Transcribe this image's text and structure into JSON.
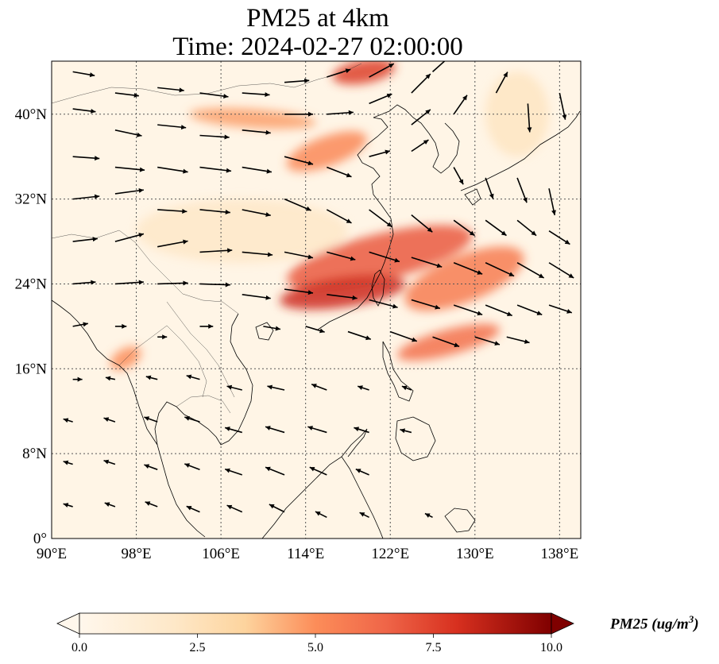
{
  "title": {
    "line1": "PM25 at 4km",
    "line2": "Time: 2024-02-27 02:00:00"
  },
  "map": {
    "extent": {
      "lon_min": 90,
      "lon_max": 140,
      "lat_min": 0,
      "lat_max": 45
    },
    "lon_ticks": [
      {
        "value": 90,
        "label": "90°E"
      },
      {
        "value": 98,
        "label": "98°E"
      },
      {
        "value": 106,
        "label": "106°E"
      },
      {
        "value": 114,
        "label": "114°E"
      },
      {
        "value": 122,
        "label": "122°E"
      },
      {
        "value": 130,
        "label": "130°E"
      },
      {
        "value": 138,
        "label": "138°E"
      }
    ],
    "lat_ticks": [
      {
        "value": 0,
        "label": "0°"
      },
      {
        "value": 8,
        "label": "8°N"
      },
      {
        "value": 16,
        "label": "16°N"
      },
      {
        "value": 24,
        "label": "24°N"
      },
      {
        "value": 32,
        "label": "32°N"
      },
      {
        "value": 40,
        "label": "40°N"
      }
    ],
    "gridlines": true,
    "background_color": "#fff5e6",
    "plumes": [
      {
        "lon": 121,
        "lat": 26.5,
        "rlon": 9,
        "rlat": 2.2,
        "rot": 14,
        "level": 6.8
      },
      {
        "lon": 117.5,
        "lat": 23.2,
        "rlon": 6,
        "rlat": 1.4,
        "rot": 8,
        "level": 8.2
      },
      {
        "lon": 129,
        "lat": 24.5,
        "rlon": 6,
        "rlat": 2.2,
        "rot": 22,
        "level": 5.6
      },
      {
        "lon": 127.5,
        "lat": 18.5,
        "rlon": 5,
        "rlat": 1.2,
        "rot": 15,
        "level": 6.0
      },
      {
        "lon": 116,
        "lat": 36.5,
        "rlon": 4,
        "rlat": 1.4,
        "rot": 20,
        "level": 5.2
      },
      {
        "lon": 119.5,
        "lat": 44,
        "rlon": 3,
        "rlat": 1.1,
        "rot": 10,
        "level": 7.6
      },
      {
        "lon": 109,
        "lat": 39.6,
        "rlon": 6,
        "rlat": 0.9,
        "rot": -4,
        "level": 4.6
      },
      {
        "lon": 97,
        "lat": 17,
        "rlon": 1.6,
        "rlat": 0.9,
        "rot": 30,
        "level": 5.0
      },
      {
        "lon": 134,
        "lat": 40,
        "rlon": 3,
        "rlat": 4,
        "rot": 0,
        "level": 2.2
      },
      {
        "lon": 108,
        "lat": 29,
        "rlon": 10,
        "rlat": 3,
        "rot": 0,
        "level": 2.0
      }
    ],
    "wind_vectors": [
      [
        92,
        44,
        2.3,
        -0.4
      ],
      [
        96,
        42,
        2.5,
        -0.3
      ],
      [
        100,
        42.5,
        2.8,
        -0.3
      ],
      [
        104,
        42,
        3.0,
        -0.4
      ],
      [
        108,
        42,
        2.9,
        -0.2
      ],
      [
        112,
        43,
        2.6,
        0.2
      ],
      [
        116,
        43.5,
        2.5,
        0.8
      ],
      [
        120,
        43.5,
        2.6,
        1.4
      ],
      [
        124,
        42,
        2.0,
        2.0
      ],
      [
        126,
        44,
        1.8,
        1.6
      ],
      [
        92,
        40.5,
        2.4,
        -0.3
      ],
      [
        96,
        38.5,
        2.8,
        -0.6
      ],
      [
        100,
        39,
        3.0,
        -0.3
      ],
      [
        104,
        38,
        3.1,
        -0.2
      ],
      [
        108,
        38.5,
        3.0,
        -0.3
      ],
      [
        112,
        40,
        3.0,
        0.0
      ],
      [
        116,
        40,
        2.8,
        0.2
      ],
      [
        120,
        41,
        2.4,
        1.0
      ],
      [
        124,
        39,
        2.0,
        1.6
      ],
      [
        128,
        40,
        1.4,
        2.0
      ],
      [
        132,
        42,
        1.2,
        2.2
      ],
      [
        135,
        41,
        0.2,
        -3.0
      ],
      [
        138,
        42,
        0.6,
        -2.8
      ],
      [
        92,
        36,
        2.8,
        -0.2
      ],
      [
        96,
        35,
        3.1,
        -0.3
      ],
      [
        100,
        35,
        3.2,
        -0.5
      ],
      [
        104,
        35,
        3.3,
        -0.4
      ],
      [
        108,
        35,
        3.1,
        -0.5
      ],
      [
        112,
        36,
        3.0,
        -0.8
      ],
      [
        116,
        35,
        2.6,
        -1.0
      ],
      [
        120,
        36,
        2.2,
        0.6
      ],
      [
        124,
        36.5,
        1.8,
        1.2
      ],
      [
        128,
        35,
        1.0,
        -1.8
      ],
      [
        131,
        34,
        0.8,
        -2.2
      ],
      [
        134,
        34,
        1.0,
        -2.6
      ],
      [
        137,
        33,
        0.6,
        -2.8
      ],
      [
        92,
        32,
        2.8,
        0.3
      ],
      [
        96,
        32.5,
        3.0,
        0.4
      ],
      [
        100,
        31,
        3.1,
        -0.2
      ],
      [
        104,
        31,
        3.2,
        -0.3
      ],
      [
        108,
        31,
        3.0,
        -0.6
      ],
      [
        112,
        32,
        2.8,
        -1.2
      ],
      [
        116,
        31,
        2.6,
        -1.4
      ],
      [
        120,
        31,
        2.4,
        -1.8
      ],
      [
        124,
        30.5,
        2.2,
        -1.8
      ],
      [
        128,
        30,
        2.2,
        -1.6
      ],
      [
        131,
        30,
        2.2,
        -1.6
      ],
      [
        134,
        30,
        2.0,
        -1.6
      ],
      [
        137,
        29,
        2.2,
        -1.4
      ],
      [
        92,
        28,
        2.6,
        0.3
      ],
      [
        96,
        28,
        3.0,
        0.8
      ],
      [
        100,
        27.5,
        3.2,
        0.6
      ],
      [
        104,
        27,
        3.4,
        0.2
      ],
      [
        108,
        27,
        3.2,
        -0.3
      ],
      [
        112,
        27,
        3.0,
        -0.6
      ],
      [
        116,
        27,
        3.0,
        -0.8
      ],
      [
        120,
        27,
        3.2,
        -1.0
      ],
      [
        124,
        26.5,
        3.2,
        -1.0
      ],
      [
        128,
        26,
        3.0,
        -1.2
      ],
      [
        131,
        26,
        3.0,
        -1.4
      ],
      [
        134,
        26,
        2.8,
        -1.6
      ],
      [
        137,
        26,
        2.6,
        -1.6
      ],
      [
        92,
        24,
        2.4,
        0.2
      ],
      [
        96,
        24,
        3.0,
        0.2
      ],
      [
        100,
        24,
        3.2,
        0.1
      ],
      [
        104,
        24,
        3.2,
        -0.1
      ],
      [
        108,
        23,
        3.0,
        -0.4
      ],
      [
        112,
        23.5,
        3.0,
        -0.4
      ],
      [
        116,
        23,
        3.2,
        -0.4
      ],
      [
        120,
        22.5,
        3.0,
        -0.8
      ],
      [
        124,
        22.5,
        3.0,
        -0.9
      ],
      [
        128,
        22,
        3.0,
        -1.0
      ],
      [
        131,
        22,
        2.8,
        -1.1
      ],
      [
        134,
        22,
        2.6,
        -1.0
      ],
      [
        137,
        22,
        2.4,
        -0.8
      ],
      [
        92,
        20,
        1.6,
        0.3
      ],
      [
        96,
        20,
        1.2,
        0.0
      ],
      [
        100,
        19,
        1.0,
        0.0
      ],
      [
        104,
        20,
        1.4,
        0.0
      ],
      [
        110,
        20,
        1.8,
        -0.3
      ],
      [
        114,
        20,
        2.0,
        -0.6
      ],
      [
        118,
        19.5,
        2.4,
        -0.8
      ],
      [
        122,
        19.5,
        2.8,
        -1.0
      ],
      [
        126,
        19,
        2.8,
        -1.0
      ],
      [
        130,
        19,
        2.6,
        -0.8
      ],
      [
        133,
        19,
        2.4,
        -0.6
      ],
      [
        92,
        15,
        1.0,
        0.0
      ],
      [
        96,
        15,
        -1.0,
        0.2
      ],
      [
        100,
        15,
        -1.2,
        0.3
      ],
      [
        104,
        15,
        -1.4,
        0.4
      ],
      [
        108,
        14,
        -1.6,
        0.4
      ],
      [
        112,
        14,
        -1.8,
        0.4
      ],
      [
        116,
        14,
        -1.6,
        0.6
      ],
      [
        120,
        14,
        -1.2,
        0.4
      ],
      [
        124,
        14,
        -1.0,
        0.4
      ],
      [
        92,
        11,
        -1.0,
        0.3
      ],
      [
        96,
        11,
        -1.2,
        0.4
      ],
      [
        100,
        11,
        -1.4,
        0.5
      ],
      [
        104,
        11,
        -1.6,
        0.5
      ],
      [
        108,
        10,
        -1.8,
        0.5
      ],
      [
        112,
        10,
        -2.0,
        0.6
      ],
      [
        116,
        10,
        -2.0,
        0.6
      ],
      [
        120,
        10,
        -1.6,
        0.5
      ],
      [
        124,
        10,
        -1.2,
        0.3
      ],
      [
        92,
        7,
        -1.0,
        0.3
      ],
      [
        96,
        7,
        -1.2,
        0.4
      ],
      [
        100,
        6.5,
        -1.4,
        0.5
      ],
      [
        104,
        6.5,
        -1.6,
        0.6
      ],
      [
        108,
        6,
        -1.8,
        0.6
      ],
      [
        112,
        6,
        -2.0,
        0.8
      ],
      [
        116,
        6,
        -1.8,
        0.8
      ],
      [
        120,
        6,
        -1.4,
        0.6
      ],
      [
        92,
        3,
        -1.0,
        0.3
      ],
      [
        96,
        3,
        -1.1,
        0.4
      ],
      [
        100,
        3,
        -1.3,
        0.5
      ],
      [
        104,
        2.5,
        -1.4,
        0.6
      ],
      [
        108,
        2.5,
        -1.6,
        0.7
      ],
      [
        112,
        2.5,
        -1.6,
        0.8
      ],
      [
        116,
        2,
        -1.2,
        0.6
      ],
      [
        120,
        2,
        -1.0,
        0.5
      ],
      [
        126,
        2,
        -0.8,
        0.4
      ]
    ]
  },
  "colorbar": {
    "min": 0.0,
    "max": 10.0,
    "tick_values": [
      0.0,
      2.5,
      5.0,
      7.5,
      10.0
    ],
    "tick_labels": [
      "0.0",
      "2.5",
      "5.0",
      "7.5",
      "10.0"
    ],
    "label": "PM25 (ug/m",
    "label_superscript": "3",
    "label_close": ")",
    "colormap": "OrRd",
    "extend": "both"
  }
}
